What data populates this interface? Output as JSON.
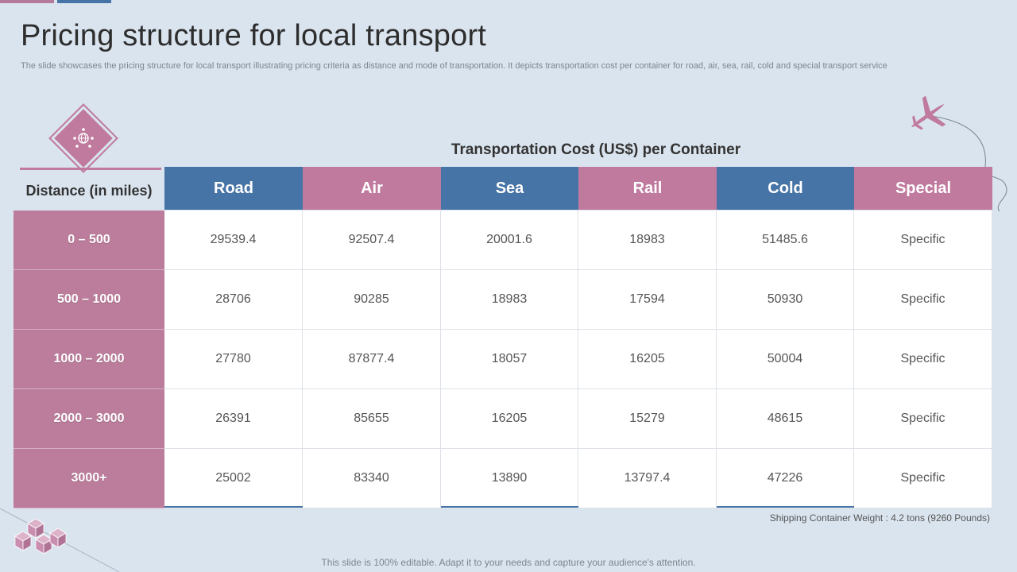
{
  "header": {
    "title": "Pricing structure for local transport",
    "subtitle": "The slide showcases the pricing structure for local transport illustrating pricing criteria as distance and mode of transportation. It depicts transportation cost per container for road, air, sea, rail, cold and special transport service"
  },
  "table": {
    "caption": "Transportation Cost (US$) per Container",
    "row_header_label": "Distance (in miles)",
    "columns": [
      "Road",
      "Air",
      "Sea",
      "Rail",
      "Cold",
      "Special"
    ],
    "rows": [
      {
        "label": "0 – 500",
        "values": [
          "29539.4",
          "92507.4",
          "20001.6",
          "18983",
          "51485.6",
          "Specific"
        ]
      },
      {
        "label": "500 – 1000",
        "values": [
          "28706",
          "90285",
          "18983",
          "17594",
          "50930",
          "Specific"
        ]
      },
      {
        "label": "1000 – 2000",
        "values": [
          "27780",
          "87877.4",
          "18057",
          "16205",
          "50004",
          "Specific"
        ]
      },
      {
        "label": "2000 – 3000",
        "values": [
          "26391",
          "85655",
          "16205",
          "15279",
          "48615",
          "Specific"
        ]
      },
      {
        "label": "3000+",
        "values": [
          "25002",
          "83340",
          "13890",
          "13797.4",
          "47226",
          "Specific"
        ]
      }
    ]
  },
  "notes": {
    "container_weight": "Shipping Container Weight : 4.2 tons (9260 Pounds)"
  },
  "footer": {
    "text": "This slide is 100% editable. Adapt it to your needs and capture your audience's attention."
  },
  "icons": {
    "diamond": "team-globe-icon",
    "decoration": "airplane-icon",
    "corner": "boxes-icon"
  },
  "colors": {
    "blue": "#4774a6",
    "pink": "#c07a9e",
    "background": "#dae4ee"
  }
}
